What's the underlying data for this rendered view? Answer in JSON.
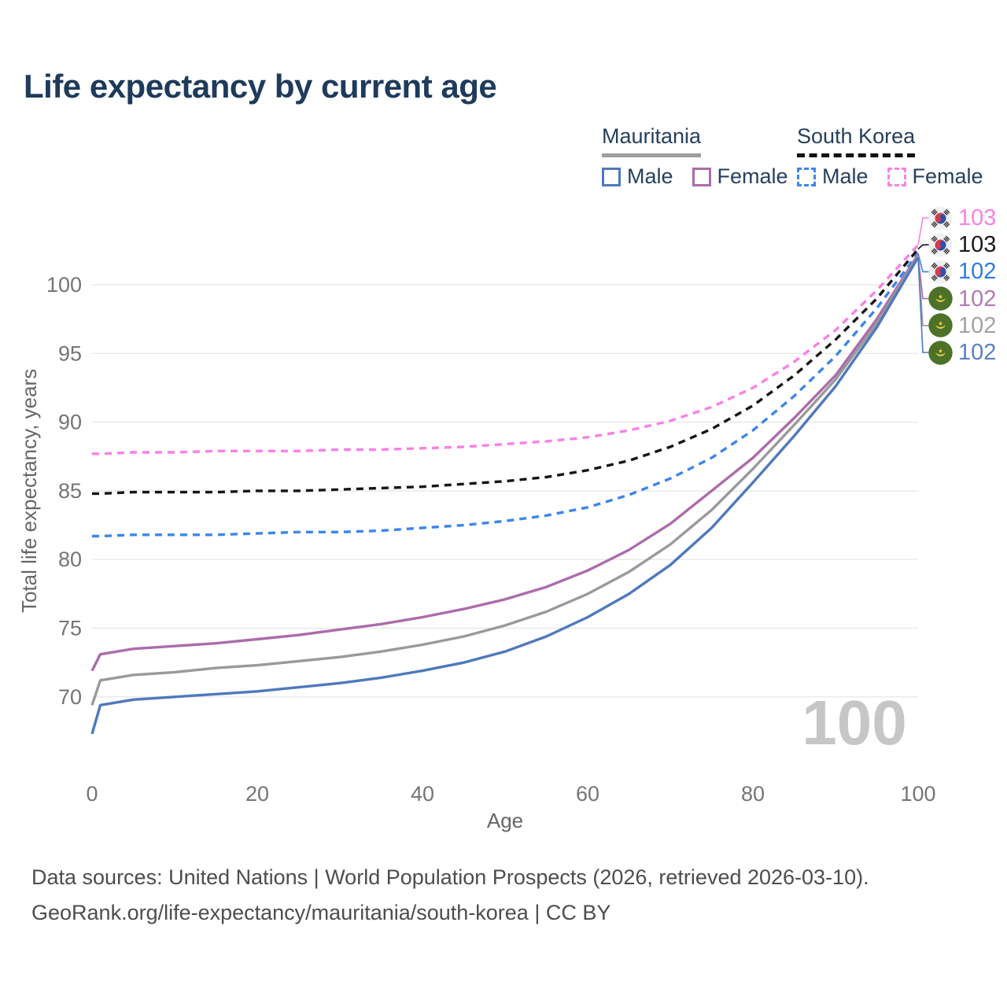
{
  "title": "Life expectancy by current age",
  "legend": {
    "groups": [
      {
        "country": "Mauritania",
        "line_style": "solid",
        "underline_color": "#9e9e9e",
        "items": [
          {
            "label": "Male",
            "color": "#4e79bd",
            "dashed": false
          },
          {
            "label": "Female",
            "color": "#ad6cab",
            "dashed": false
          }
        ]
      },
      {
        "country": "South Korea",
        "line_style": "dashed",
        "underline_color": "#111111",
        "items": [
          {
            "label": "Male",
            "color": "#3b86ec",
            "dashed": true
          },
          {
            "label": "Female",
            "color": "#fb80e6",
            "dashed": true
          }
        ]
      }
    ]
  },
  "chart_data": {
    "type": "line",
    "title": "Life expectancy by current age",
    "xlabel": "Age",
    "ylabel": "Total life expectancy, years",
    "x_ticks": [
      0,
      20,
      40,
      60,
      80,
      100
    ],
    "y_ticks": [
      70,
      75,
      80,
      85,
      90,
      95,
      100
    ],
    "xlim": [
      0,
      100
    ],
    "ylim": [
      66,
      104.5
    ],
    "grid": "horizontal",
    "legend_position": "top-right",
    "ages": [
      0,
      1,
      5,
      10,
      15,
      20,
      25,
      30,
      35,
      40,
      45,
      50,
      55,
      60,
      65,
      70,
      75,
      80,
      85,
      90,
      95,
      100
    ],
    "series": [
      {
        "name": "South Korea Female",
        "country": "South Korea",
        "sex": "female",
        "flag": "south-korea",
        "color": "#fb80e6",
        "dashed": true,
        "end_label": "103",
        "label_color": "#fb80e6",
        "values": [
          87.7,
          87.7,
          87.8,
          87.8,
          87.9,
          87.9,
          87.9,
          88.0,
          88.0,
          88.1,
          88.2,
          88.4,
          88.6,
          88.9,
          89.4,
          90.1,
          91.1,
          92.5,
          94.4,
          96.7,
          99.6,
          102.9
        ]
      },
      {
        "name": "South Korea Average",
        "country": "South Korea",
        "sex": "both",
        "flag": "south-korea",
        "color": "#151515",
        "dashed": true,
        "end_label": "103",
        "label_color": "#1a1a1a",
        "values": [
          84.8,
          84.8,
          84.9,
          84.9,
          84.9,
          85.0,
          85.0,
          85.1,
          85.2,
          85.3,
          85.5,
          85.7,
          86.0,
          86.5,
          87.2,
          88.2,
          89.5,
          91.2,
          93.4,
          96.0,
          99.0,
          102.6
        ]
      },
      {
        "name": "South Korea Male",
        "country": "South Korea",
        "sex": "male",
        "flag": "south-korea",
        "color": "#3b86ec",
        "dashed": true,
        "end_label": "102",
        "label_color": "#2f7ce0",
        "values": [
          81.7,
          81.7,
          81.8,
          81.8,
          81.8,
          81.9,
          82.0,
          82.0,
          82.1,
          82.3,
          82.5,
          82.8,
          83.2,
          83.8,
          84.7,
          85.9,
          87.4,
          89.4,
          91.9,
          94.8,
          98.3,
          102.3
        ]
      },
      {
        "name": "Mauritania Female",
        "country": "Mauritania",
        "sex": "female",
        "flag": "mauritania",
        "color": "#ad6cab",
        "dashed": false,
        "end_label": "102",
        "label_color": "#b379b1",
        "values": [
          71.9,
          73.1,
          73.5,
          73.7,
          73.9,
          74.2,
          74.5,
          74.9,
          75.3,
          75.8,
          76.4,
          77.1,
          78.0,
          79.2,
          80.7,
          82.6,
          85.0,
          87.4,
          90.3,
          93.4,
          97.5,
          102.2
        ]
      },
      {
        "name": "Mauritania Average",
        "country": "Mauritania",
        "sex": "both",
        "flag": "mauritania",
        "color": "#9a9a9a",
        "dashed": false,
        "end_label": "102",
        "label_color": "#a3a3a3",
        "values": [
          69.4,
          71.2,
          71.6,
          71.8,
          72.1,
          72.3,
          72.6,
          72.9,
          73.3,
          73.8,
          74.4,
          75.2,
          76.2,
          77.5,
          79.1,
          81.1,
          83.6,
          86.6,
          89.8,
          93.1,
          97.2,
          102.1
        ]
      },
      {
        "name": "Mauritania Male",
        "country": "Mauritania",
        "sex": "male",
        "flag": "mauritania",
        "color": "#4e79bd",
        "dashed": false,
        "end_label": "102",
        "label_color": "#5b80c6",
        "values": [
          67.3,
          69.4,
          69.8,
          70.0,
          70.2,
          70.4,
          70.7,
          71.0,
          71.4,
          71.9,
          72.5,
          73.3,
          74.4,
          75.8,
          77.5,
          79.6,
          82.3,
          85.6,
          89.0,
          92.6,
          96.9,
          102.0
        ]
      }
    ]
  },
  "watermark": "100",
  "footer": {
    "line1": "Data sources: United Nations | World Population Prospects (2026, retrieved 2026-03-10).",
    "line2": "GeoRank.org/life-expectancy/mauritania/south-korea | CC BY"
  }
}
